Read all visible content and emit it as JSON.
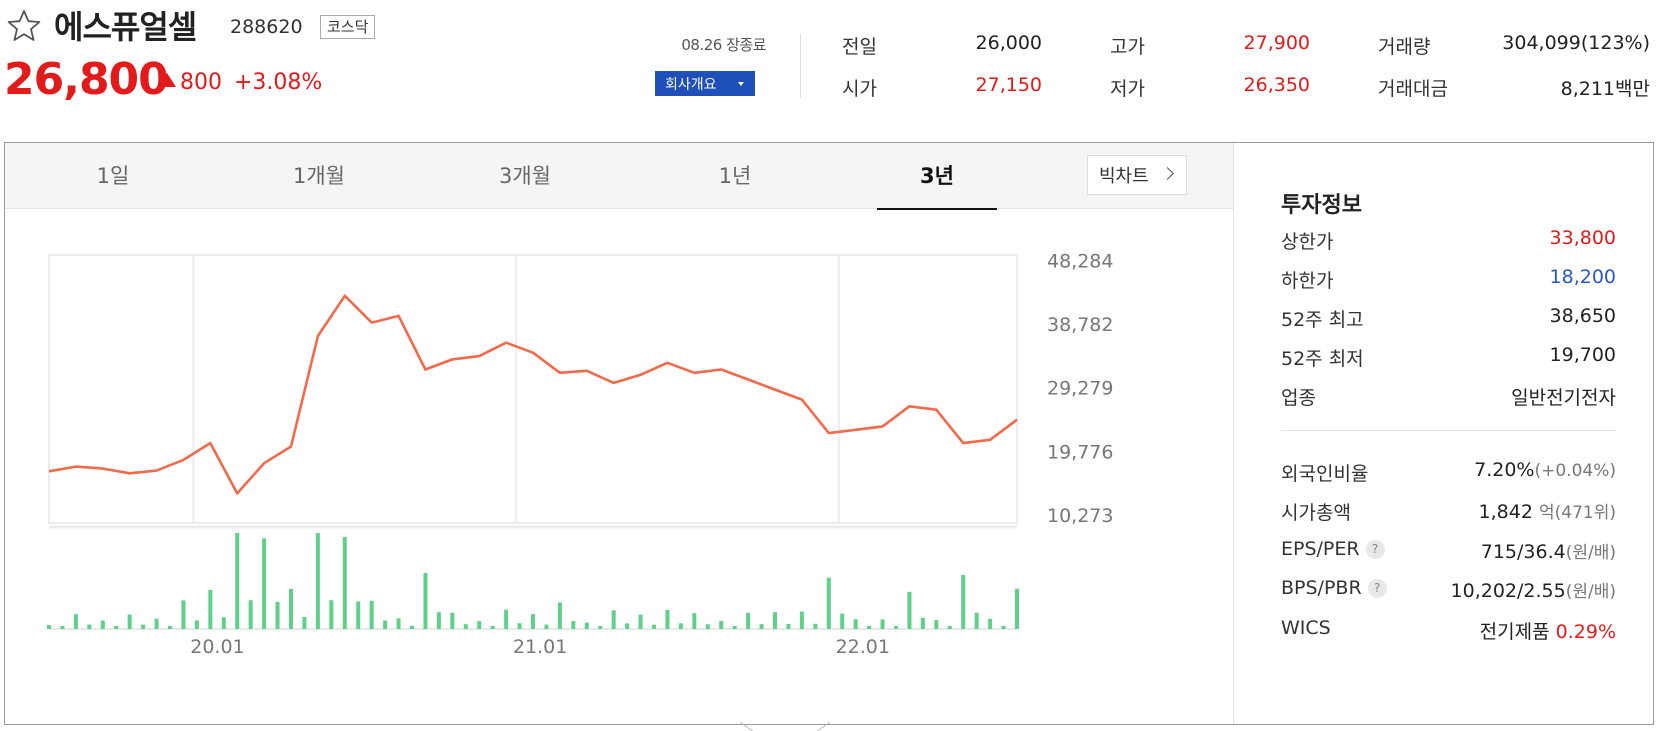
{
  "stock": {
    "name": "에스퓨얼셀",
    "code": "288620",
    "market": "코스닥",
    "price": "26,800",
    "change": "800",
    "change_rate": "+3.08%",
    "session": "08.26 장종료",
    "company_button": "회사개요",
    "favorite_icon": "star-outline-icon"
  },
  "quote": {
    "prev_label": "전일",
    "prev_value": "26,000",
    "open_label": "시가",
    "open_value": "27,150",
    "high_label": "고가",
    "high_value": "27,900",
    "low_label": "저가",
    "low_value": "26,350",
    "volume_label": "거래량",
    "volume_value": "304,099(123%)",
    "amount_label": "거래대금",
    "amount_value": "8,211",
    "amount_unit": "백만"
  },
  "tabs": [
    "1일",
    "1개월",
    "3개월",
    "1년",
    "3년"
  ],
  "active_tab": "3년",
  "big_chart_label": "빅차트",
  "colors": {
    "up": "#e21a1a",
    "down": "#2b57c9",
    "line": "#f26a4b",
    "volume": "#5fd08a",
    "accent": "#1f4fb8"
  },
  "chart_data": {
    "type": "line",
    "x": [
      "2019-08",
      "2019-09",
      "2019-10",
      "2019-11",
      "2019-12",
      "2020-01",
      "2020-02",
      "2020-03",
      "2020-04",
      "2020-05",
      "2020-06",
      "2020-07",
      "2020-08",
      "2020-09",
      "2020-10",
      "2020-11",
      "2020-12",
      "2021-01",
      "2021-02",
      "2021-03",
      "2021-04",
      "2021-05",
      "2021-06",
      "2021-07",
      "2021-08",
      "2021-09",
      "2021-10",
      "2021-11",
      "2021-12",
      "2022-01",
      "2022-02",
      "2022-03",
      "2022-04",
      "2022-05",
      "2022-06",
      "2022-07",
      "2022-08"
    ],
    "series": [
      {
        "name": "",
        "values": [
          16800,
          17500,
          17200,
          16500,
          16900,
          18500,
          21000,
          13500,
          18000,
          20500,
          37000,
          43000,
          39000,
          40000,
          32000,
          33500,
          34000,
          36000,
          34500,
          31500,
          31800,
          30000,
          31200,
          33000,
          31500,
          32000,
          30500,
          29000,
          27500,
          22500,
          23000,
          23500,
          26500,
          26000,
          21000,
          21500,
          24500
        ]
      }
    ],
    "volume_peak": "2020-07",
    "x_tick_labels": [
      "20.01",
      "21.01",
      "22.01"
    ],
    "y_tick_labels": [
      "48,284",
      "38,782",
      "29,279",
      "19,776",
      "10,273"
    ],
    "ylim": [
      10273,
      48284
    ],
    "grid": true,
    "legend": "none"
  },
  "invest": {
    "title": "투자정보",
    "upper_limit_label": "상한가",
    "upper_limit_value": "33,800",
    "lower_limit_label": "하한가",
    "lower_limit_value": "18,200",
    "w52_high_label": "52주 최고",
    "w52_high_value": "38,650",
    "w52_low_label": "52주 최저",
    "w52_low_value": "19,700",
    "industry_label": "업종",
    "industry_value": "일반전기전자",
    "foreign_label": "외국인비율",
    "foreign_value": "7.20%",
    "foreign_change": "(+0.04%)",
    "mcap_label": "시가총액",
    "mcap_value": "1,842",
    "mcap_unit": "억",
    "mcap_rank": "(471위)",
    "eps_label": "EPS/PER",
    "eps_value": "715/36.4",
    "eps_unit": "(원/배)",
    "bps_label": "BPS/PBR",
    "bps_value": "10,202/2.55",
    "bps_unit": "(원/배)",
    "help_glyph": "?",
    "wics_label": "WICS",
    "wics_value": "전기제품",
    "wics_rate": "0.29%"
  }
}
